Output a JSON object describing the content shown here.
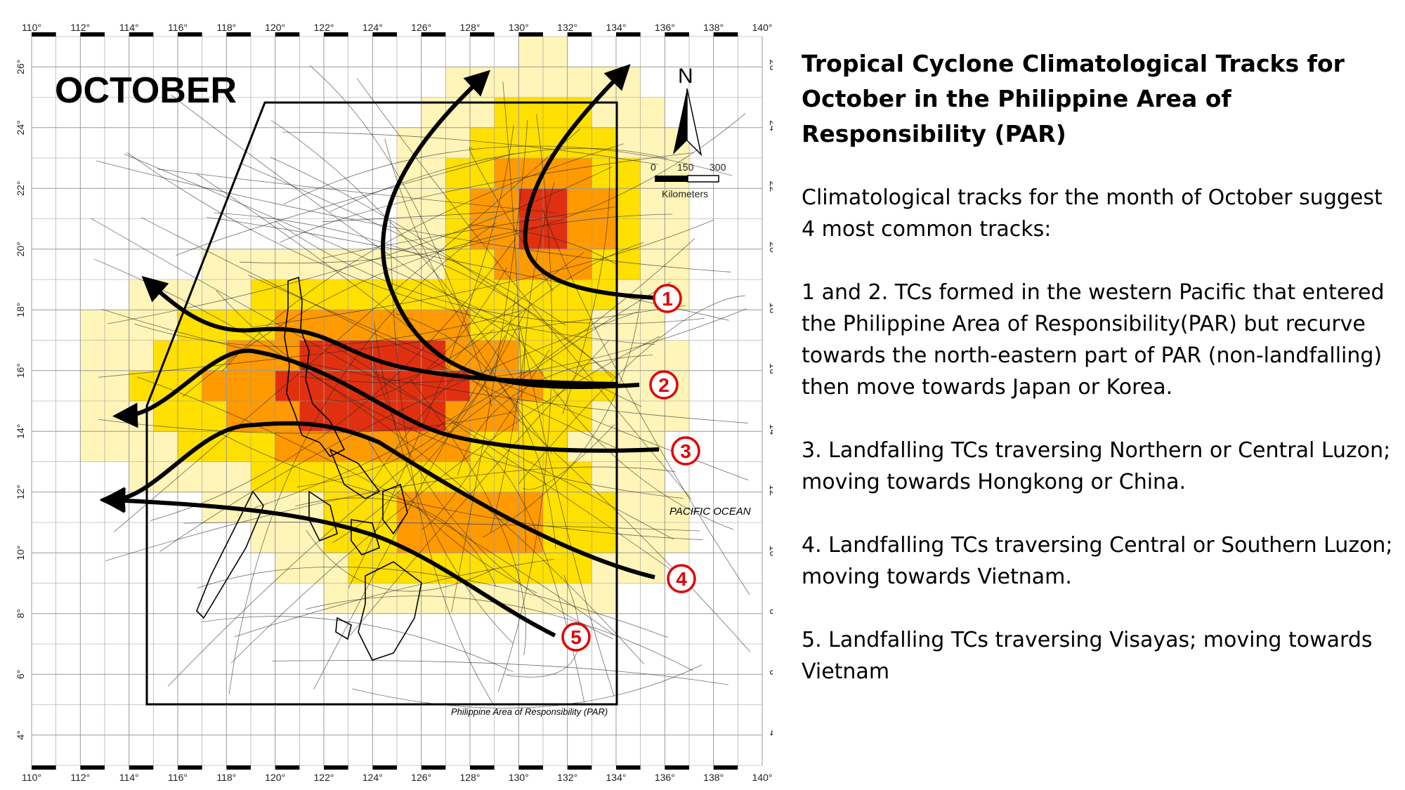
{
  "map": {
    "month_title": "OCTOBER",
    "north_label": "N",
    "scale_labels": [
      "0",
      "150",
      "300"
    ],
    "scale_unit": "Kilometers",
    "ocean_label": "PACIFIC OCEAN",
    "par_label": "Philippine Area of Responsibility (PAR)",
    "lon_ticks": [
      "110°",
      "112°",
      "114°",
      "116°",
      "118°",
      "120°",
      "122°",
      "124°",
      "126°",
      "128°",
      "130°",
      "132°",
      "134°",
      "136°",
      "138°",
      "140°"
    ],
    "lat_ticks": [
      "4°",
      "6°",
      "8°",
      "10°",
      "12°",
      "14°",
      "16°",
      "18°",
      "20°",
      "22°",
      "24°",
      "26°"
    ],
    "track_labels": [
      "1",
      "2",
      "3",
      "4",
      "5"
    ],
    "colors": {
      "density_low": "#fff5b8",
      "density_mid": "#ffe000",
      "density_high": "#ff9a00",
      "density_max": "#e03010",
      "track_arrow": "#000000",
      "track_label": "#e00000"
    }
  },
  "text": {
    "title": "Tropical Cyclone Climatological  Tracks for October in the Philippine Area of Responsibility (PAR)",
    "intro": "Climatological tracks for the month of October suggest 4 most common tracks:",
    "track12": "1 and 2. TCs formed in the western Pacific that entered the Philippine Area of Responsibility(PAR) but recurve towards the north-eastern part of PAR (non-landfalling) then move towards Japan or Korea.",
    "track3": "3. Landfalling TCs traversing Northern or Central Luzon; moving towards Hongkong or China.",
    "track4": "4. Landfalling TCs traversing Central or Southern Luzon; moving  towards Vietnam.",
    "track5": "5. Landfalling TCs traversing Visayas; moving towards Vietnam"
  }
}
